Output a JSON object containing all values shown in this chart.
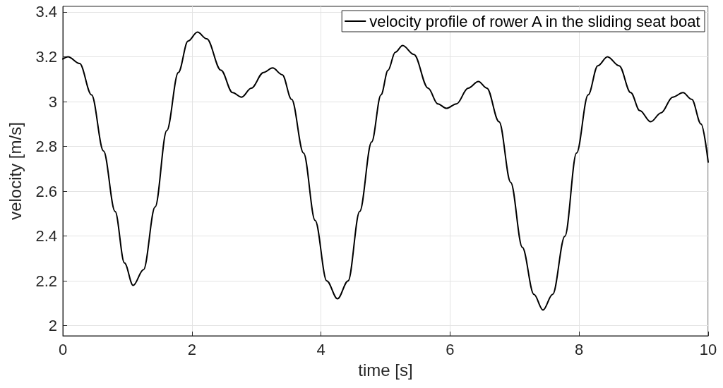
{
  "chart_data": {
    "type": "line",
    "xlabel": "time [s]",
    "ylabel": "velocity [m/s]",
    "xlim": [
      0,
      10
    ],
    "xticks": [
      0,
      2,
      4,
      6,
      8,
      10
    ],
    "ylim": [
      1.955,
      3.425
    ],
    "yticks": [
      2,
      2.2,
      2.4,
      2.6,
      2.8,
      3,
      3.2,
      3.4
    ],
    "grid": true,
    "legend": "top right",
    "marker": "none",
    "line_style": "solid",
    "series": [
      {
        "name": "velocity profile of rower A in the sliding seat boat",
        "color": "#000000",
        "x": [
          0,
          0.08,
          0.26,
          0.445,
          0.63,
          0.81,
          0.955,
          1.09,
          1.25,
          1.43,
          1.61,
          1.79,
          1.94,
          2.086,
          2.23,
          2.45,
          2.63,
          2.77,
          2.92,
          3.11,
          3.25,
          3.4,
          3.545,
          3.73,
          3.91,
          4.09,
          4.256,
          4.42,
          4.6,
          4.785,
          4.93,
          5.04,
          5.15,
          5.266,
          5.44,
          5.66,
          5.81,
          5.945,
          6.1,
          6.28,
          6.44,
          6.57,
          6.76,
          6.94,
          7.12,
          7.3,
          7.44,
          7.59,
          7.78,
          7.96,
          8.14,
          8.29,
          8.44,
          8.62,
          8.8,
          8.94,
          9.11,
          9.27,
          9.45,
          9.61,
          9.745,
          9.89,
          10
        ],
        "values": [
          3.19,
          3.2,
          3.17,
          3.03,
          2.78,
          2.51,
          2.28,
          2.18,
          2.25,
          2.53,
          2.87,
          3.13,
          3.27,
          3.31,
          3.28,
          3.14,
          3.04,
          3.02,
          3.06,
          3.13,
          3.15,
          3.12,
          3.01,
          2.77,
          2.47,
          2.2,
          2.12,
          2.2,
          2.51,
          2.82,
          3.03,
          3.14,
          3.22,
          3.25,
          3.21,
          3.06,
          2.99,
          2.97,
          2.99,
          3.06,
          3.09,
          3.06,
          2.91,
          2.64,
          2.35,
          2.14,
          2.07,
          2.14,
          2.4,
          2.77,
          3.03,
          3.16,
          3.2,
          3.16,
          3.04,
          2.96,
          2.91,
          2.95,
          3.02,
          3.04,
          3.01,
          2.9,
          2.73
        ]
      }
    ]
  }
}
